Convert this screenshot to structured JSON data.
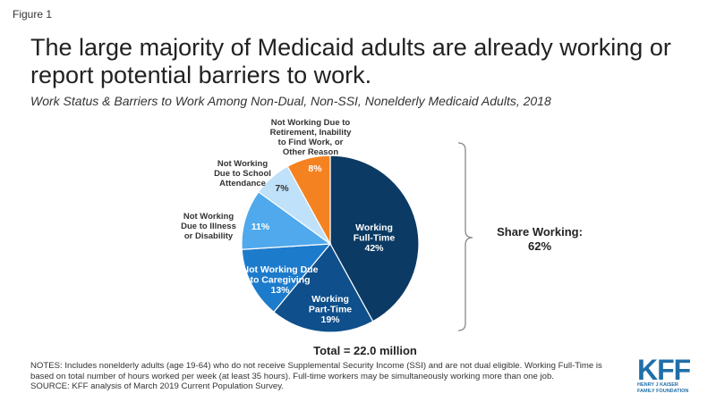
{
  "figure_label": "Figure 1",
  "title": "The large majority of Medicaid adults are already working or report potential barriers to work.",
  "subtitle": "Work Status & Barriers to Work Among Non-Dual, Non-SSI, Nonelderly Medicaid Adults, 2018",
  "share_working": {
    "label": "Share Working:",
    "value": "62%"
  },
  "total": "Total = 22.0 million",
  "notes": [
    "NOTES: Includes nonelderly adults (age 19-64) who do not receive Supplemental Security Income (SSI) and are not dual eligible. Working Full-Time is",
    "based on total number of hours worked per week (at least 35 hours). Full-time workers may be simultaneously  working more than one job.",
    "SOURCE: KFF analysis of March 2019 Current Population Survey."
  ],
  "logo": {
    "main": "KFF",
    "sub1": "HENRY J KAISER",
    "sub2": "FAMILY FOUNDATION"
  },
  "chart_data": {
    "type": "pie",
    "slices": [
      {
        "label": "Working Full-Time",
        "value": 42,
        "display": "42%",
        "color": "#0b3a64",
        "label_lines": [
          "Working",
          "Full-Time"
        ]
      },
      {
        "label": "Working Part-Time",
        "value": 19,
        "display": "19%",
        "color": "#0e4f8c",
        "label_lines": [
          "Working",
          "Part-Time"
        ]
      },
      {
        "label": "Not Working Due to Caregiving",
        "value": 13,
        "display": "13%",
        "color": "#1d7bcc",
        "label_lines": [
          "Not Working Due",
          "to Caregiving"
        ]
      },
      {
        "label": "Not Working Due to Illness or Disability",
        "value": 11,
        "display": "11%",
        "color": "#4fa9ec",
        "label_lines": [
          "Not Working",
          "Due to Illness",
          "or Disability"
        ]
      },
      {
        "label": "Not Working Due to School Attendance",
        "value": 7,
        "display": "7%",
        "color": "#bfe1fa",
        "label_lines": [
          "Not Working",
          "Due to School",
          "Attendance"
        ]
      },
      {
        "label": "Not Working Due to Retirement, Inability to Find Work, or Other Reason",
        "value": 8,
        "display": "8%",
        "color": "#f58220",
        "label_lines": [
          "Not Working Due to",
          "Retirement, Inability",
          "to Find Work, or",
          "Other Reason"
        ]
      }
    ]
  }
}
